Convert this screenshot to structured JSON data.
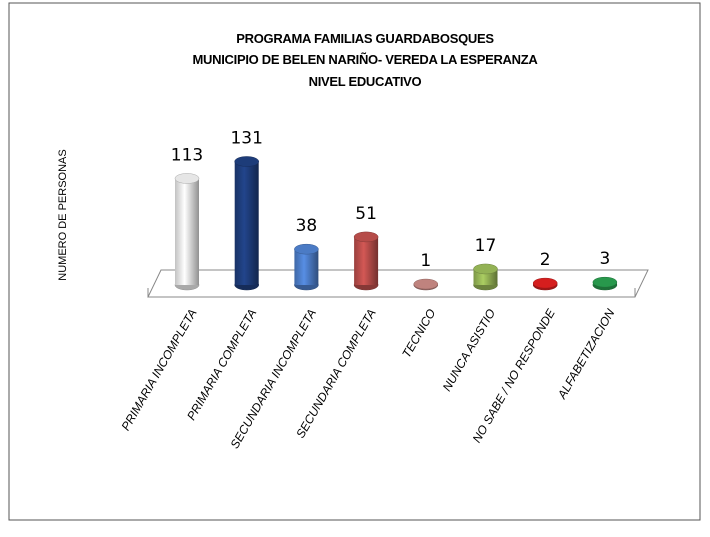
{
  "chart_data": {
    "type": "bar3d",
    "title": [
      "PROGRAMA FAMILIAS GUARDABOSQUES",
      "MUNICIPIO DE BELEN NARIÑO- VEREDA LA ESPERANZA",
      "NIVEL EDUCATIVO"
    ],
    "y_label": "NUMERO DE PERSONAS",
    "categories": [
      "PRIMARIA INCOMPLETA",
      "PRIMARIA COMPLETA",
      "SECUNDARIA INCOMPLETA",
      "SECUNDARIA COMPLETA",
      "TECNICO",
      "NUNCA ASISTIO",
      "NO SABE / NO RESPONDE",
      "ALFABETIZACION"
    ],
    "values": [
      113,
      131,
      38,
      51,
      1,
      17,
      2,
      3
    ],
    "colors": [
      "#f2f2f2",
      "#1f3f7f",
      "#4f81cf",
      "#c0504d",
      "#c98a85",
      "#9bbb59",
      "#e02020",
      "#2aa050"
    ],
    "ylim": [
      0,
      140
    ]
  }
}
